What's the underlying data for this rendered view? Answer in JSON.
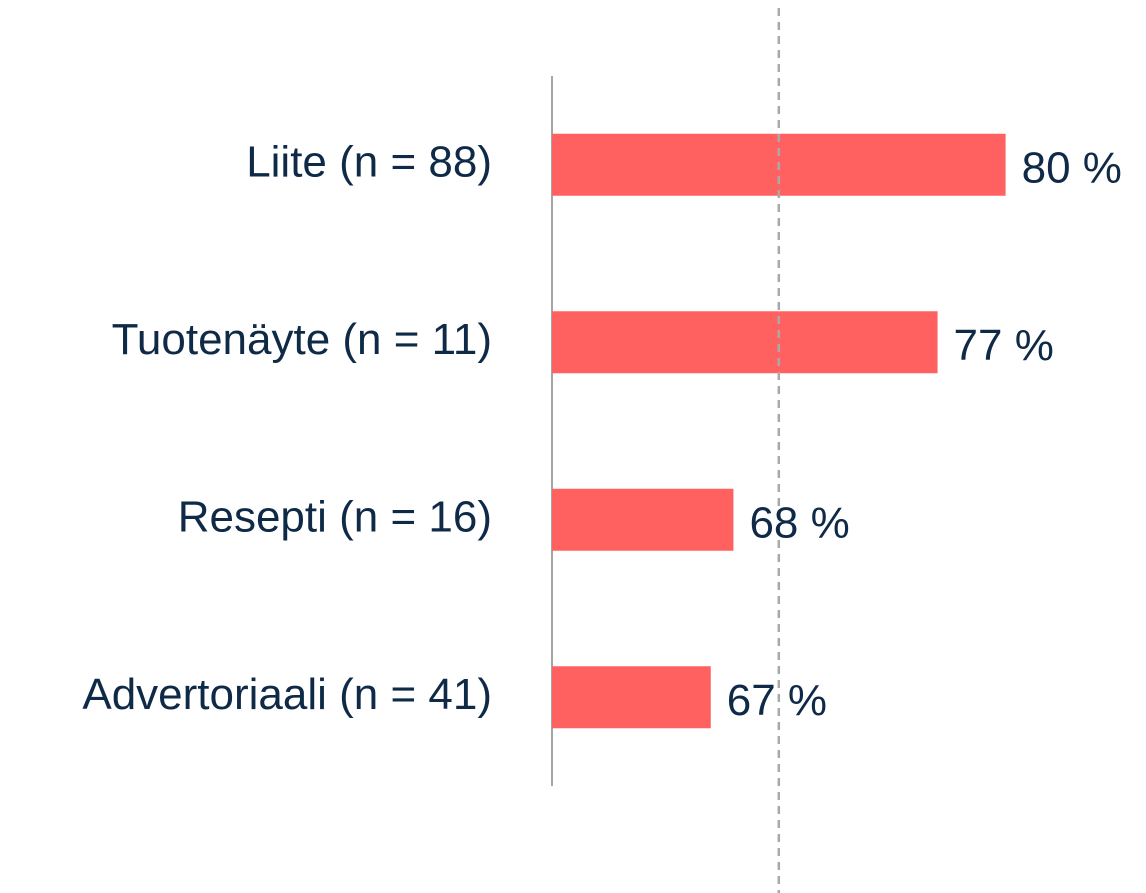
{
  "chart_data": {
    "type": "bar",
    "orientation": "horizontal",
    "categories": [
      "Liite (n = 88)",
      "Tuotenäyte (n = 11)",
      "Resepti (n = 16)",
      "Advertoriaali (n = 41)"
    ],
    "values": [
      80,
      77,
      68,
      67
    ],
    "value_labels": [
      "80 %",
      "77 %",
      "68 %",
      "67 %"
    ],
    "color": "#ff6161",
    "xlim": [
      60,
      85
    ],
    "reference_line": 70
  }
}
